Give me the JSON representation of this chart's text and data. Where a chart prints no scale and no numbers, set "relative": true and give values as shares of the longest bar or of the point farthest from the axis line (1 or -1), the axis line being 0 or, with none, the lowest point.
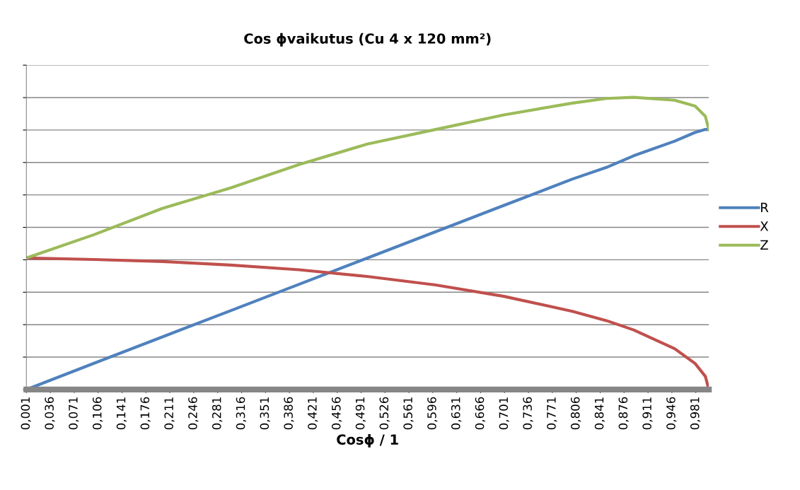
{
  "chart_data": {
    "type": "line",
    "title": "Cos ϕvaikutus (Cu 4 x 120 mm²)",
    "xlabel": "Cosϕ / 1",
    "relative": true,
    "grid": "y",
    "legend": "right",
    "marker": "none",
    "line_style": "solid",
    "x": [
      0.001,
      0.1,
      0.2,
      0.3,
      0.4,
      0.5,
      0.6,
      0.7,
      0.8,
      0.85,
      0.89,
      0.95,
      0.98,
      0.995,
      1.0
    ],
    "xlim": [
      0.001,
      1.0
    ],
    "xticks": [
      {
        "value": 0.001,
        "label": "0,001"
      },
      {
        "value": 0.036,
        "label": "0,036"
      },
      {
        "value": 0.071,
        "label": "0,071"
      },
      {
        "value": 0.106,
        "label": "0,106"
      },
      {
        "value": 0.141,
        "label": "0,141"
      },
      {
        "value": 0.176,
        "label": "0,176"
      },
      {
        "value": 0.211,
        "label": "0,211"
      },
      {
        "value": 0.246,
        "label": "0,246"
      },
      {
        "value": 0.281,
        "label": "0,281"
      },
      {
        "value": 0.316,
        "label": "0,316"
      },
      {
        "value": 0.351,
        "label": "0,351"
      },
      {
        "value": 0.386,
        "label": "0,386"
      },
      {
        "value": 0.421,
        "label": "0,421"
      },
      {
        "value": 0.456,
        "label": "0,456"
      },
      {
        "value": 0.491,
        "label": "0,491"
      },
      {
        "value": 0.526,
        "label": "0,526"
      },
      {
        "value": 0.561,
        "label": "0,561"
      },
      {
        "value": 0.596,
        "label": "0,596"
      },
      {
        "value": 0.631,
        "label": "0,631"
      },
      {
        "value": 0.666,
        "label": "0,666"
      },
      {
        "value": 0.701,
        "label": "0,701"
      },
      {
        "value": 0.736,
        "label": "0,736"
      },
      {
        "value": 0.771,
        "label": "0,771"
      },
      {
        "value": 0.806,
        "label": "0,806"
      },
      {
        "value": 0.841,
        "label": "0,841"
      },
      {
        "value": 0.876,
        "label": "0,876"
      },
      {
        "value": 0.911,
        "label": "0,911"
      },
      {
        "value": 0.946,
        "label": "0,946"
      },
      {
        "value": 0.981,
        "label": "0,981"
      }
    ],
    "series": [
      {
        "name": "R",
        "color": "#4f81bd",
        "values": [
          0.0,
          0.09,
          0.18,
          0.27,
          0.36,
          0.45,
          0.54,
          0.63,
          0.72,
          0.76,
          0.8,
          0.85,
          0.88,
          0.89,
          0.89
        ]
      },
      {
        "name": "X",
        "color": "#c0504d",
        "values": [
          0.45,
          0.445,
          0.438,
          0.426,
          0.41,
          0.387,
          0.358,
          0.319,
          0.268,
          0.236,
          0.204,
          0.14,
          0.089,
          0.045,
          0.0
        ]
      },
      {
        "name": "Z",
        "color": "#9bbb59",
        "values": [
          0.45,
          0.53,
          0.62,
          0.69,
          0.77,
          0.84,
          0.89,
          0.94,
          0.98,
          0.996,
          1.0,
          0.99,
          0.97,
          0.935,
          0.89
        ]
      }
    ]
  }
}
